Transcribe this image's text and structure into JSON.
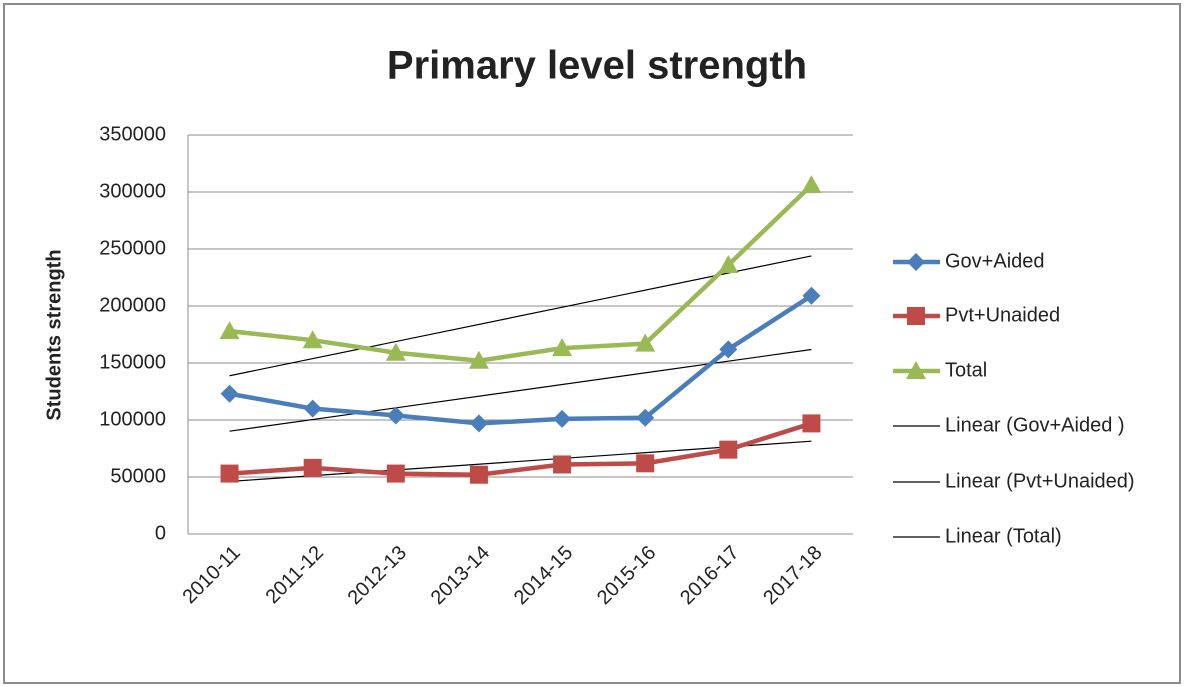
{
  "chart_data": {
    "type": "line",
    "title": "Primary level strength",
    "y_label": "Students strength",
    "categories": [
      "2010-11",
      "2011-12",
      "2012-13",
      "2013-14",
      "2014-15",
      "2015-16",
      "2016-17",
      "2017-18"
    ],
    "series": [
      {
        "name": "Gov+Aided",
        "color": "#4a7ebb",
        "marker": "diamond",
        "trendline": "Linear (Gov+Aided )",
        "values": [
          123000,
          110000,
          104000,
          97000,
          101000,
          102000,
          162000,
          209000
        ]
      },
      {
        "name": "Pvt+Unaided",
        "color": "#be4b48",
        "marker": "square",
        "trendline": "Linear (Pvt+Unaided)",
        "values": [
          53000,
          58000,
          53000,
          52000,
          61000,
          62000,
          74000,
          97000
        ]
      },
      {
        "name": "Total",
        "color": "#98b954",
        "marker": "triangle",
        "trendline": "Linear (Total)",
        "values": [
          178000,
          170000,
          159000,
          152000,
          163000,
          167000,
          236000,
          306000
        ]
      }
    ],
    "trendline_color": "#000000",
    "ylim": [
      0,
      350000
    ],
    "yticks": [
      0,
      50000,
      100000,
      150000,
      200000,
      250000,
      300000,
      350000
    ],
    "grid": true,
    "legend": "right"
  }
}
